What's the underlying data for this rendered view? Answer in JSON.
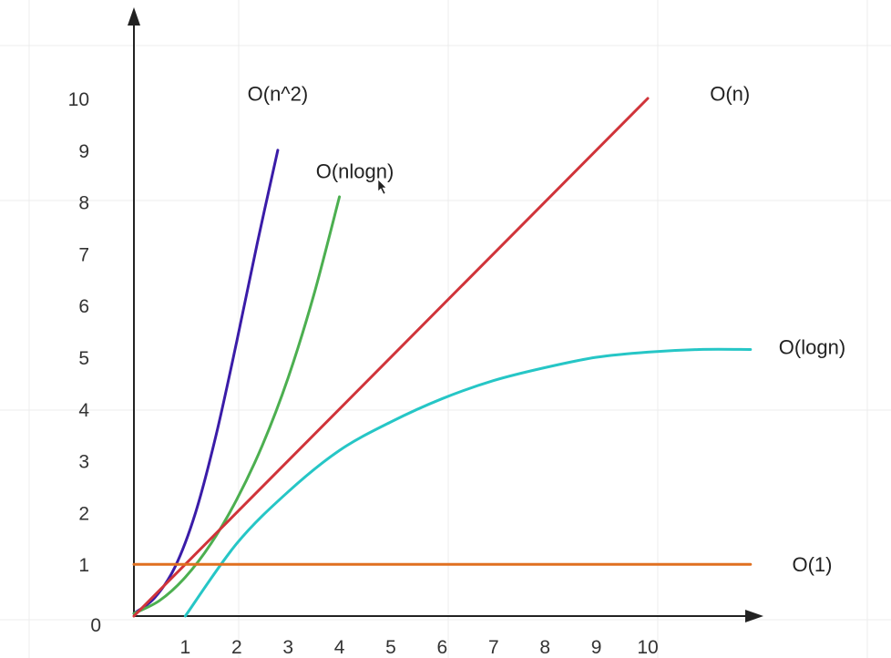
{
  "chart_data": {
    "type": "line",
    "title": "",
    "xlabel": "",
    "ylabel": "",
    "x_ticks": [
      1,
      2,
      3,
      4,
      5,
      6,
      7,
      8,
      9,
      10
    ],
    "y_ticks": [
      0,
      1,
      2,
      3,
      4,
      5,
      6,
      7,
      8,
      9,
      10
    ],
    "xlim": [
      0,
      12
    ],
    "ylim": [
      0,
      11
    ],
    "grid": true,
    "series": [
      {
        "name": "O(n^2)",
        "color": "#3a1ca8",
        "points": [
          [
            0,
            0.05
          ],
          [
            0.4,
            0.35
          ],
          [
            0.8,
            0.95
          ],
          [
            1.2,
            2.0
          ],
          [
            1.6,
            3.5
          ],
          [
            2.0,
            5.3
          ],
          [
            2.4,
            7.2
          ],
          [
            2.8,
            9.0
          ]
        ]
      },
      {
        "name": "O(nlogn)",
        "color": "#4caf50",
        "points": [
          [
            0,
            0.05
          ],
          [
            0.5,
            0.3
          ],
          [
            1.0,
            0.75
          ],
          [
            1.5,
            1.4
          ],
          [
            2.0,
            2.25
          ],
          [
            2.5,
            3.3
          ],
          [
            3.0,
            4.6
          ],
          [
            3.5,
            6.2
          ],
          [
            4.0,
            8.1
          ]
        ]
      },
      {
        "name": "O(n)",
        "color": "#d0343a",
        "points": [
          [
            0,
            0
          ],
          [
            10,
            10
          ]
        ]
      },
      {
        "name": "O(logn)",
        "color": "#26c6c6",
        "points": [
          [
            1.0,
            0
          ],
          [
            2.0,
            1.4
          ],
          [
            3.0,
            2.4
          ],
          [
            4.0,
            3.2
          ],
          [
            5.0,
            3.75
          ],
          [
            6.0,
            4.2
          ],
          [
            7.0,
            4.55
          ],
          [
            8.0,
            4.8
          ],
          [
            9.0,
            5.0
          ],
          [
            10.0,
            5.1
          ],
          [
            11.0,
            5.15
          ],
          [
            12.0,
            5.15
          ]
        ]
      },
      {
        "name": "O(1)",
        "color": "#e07020",
        "points": [
          [
            0,
            1
          ],
          [
            12,
            1
          ]
        ]
      }
    ],
    "annotations": [
      {
        "text": "O(n^2)",
        "x": 2.8,
        "y": 10.1
      },
      {
        "text": "O(nlogn)",
        "x": 4.3,
        "y": 8.6
      },
      {
        "text": "O(n)",
        "x": 11.6,
        "y": 10.1
      },
      {
        "text": "O(logn)",
        "x": 13.2,
        "y": 5.2
      },
      {
        "text": "O(1)",
        "x": 13.2,
        "y": 1.0
      }
    ]
  }
}
